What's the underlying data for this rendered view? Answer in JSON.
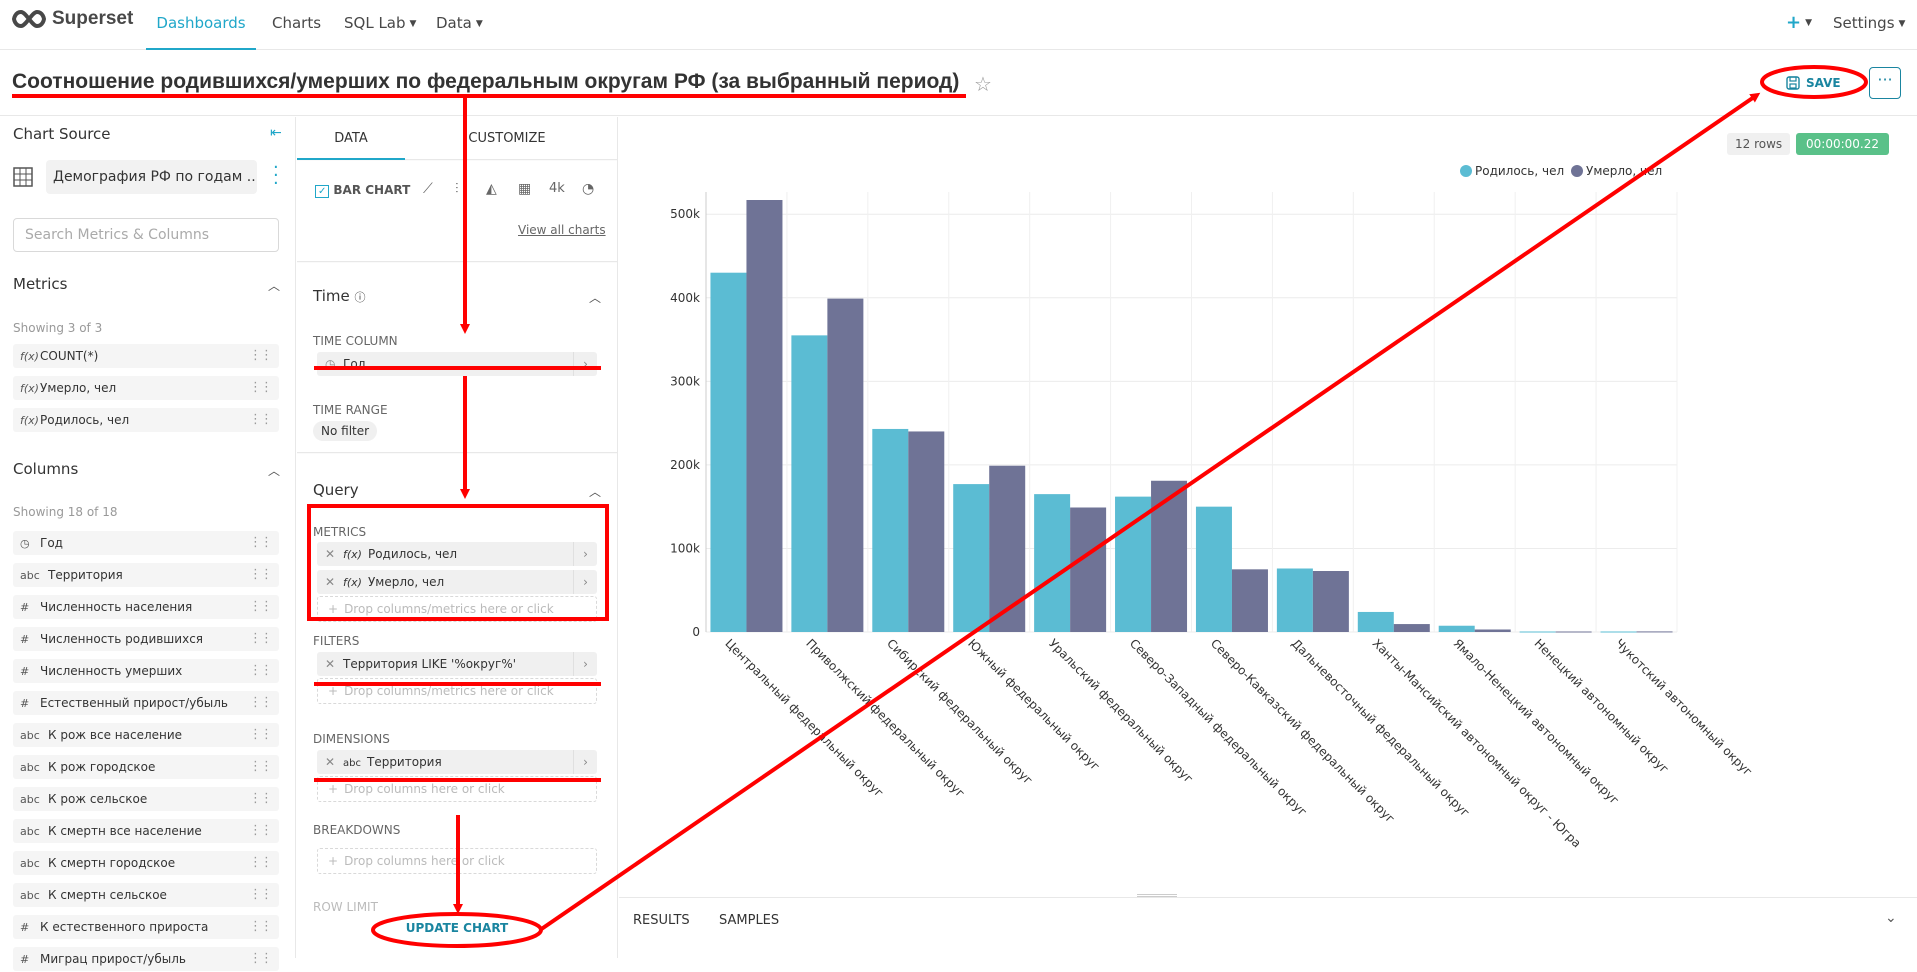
{
  "nav": {
    "logo_text": "Superset",
    "items": [
      "Dashboards",
      "Charts",
      "SQL Lab",
      "Data"
    ],
    "plus": "+",
    "settings": "Settings"
  },
  "header": {
    "title": "Соотношение родившихся/умерших по федеральным округам РФ (за выбранный период)",
    "save_label": "SAVE",
    "more_label": "···"
  },
  "left": {
    "chart_source_label": "Chart Source",
    "dataset": "Демография РФ по годам ...",
    "search_placeholder": "Search Metrics & Columns",
    "metrics_title": "Metrics",
    "metrics_showing": "Showing 3 of 3",
    "metrics": [
      "COUNT(*)",
      "Умерло, чел",
      "Родилось, чел"
    ],
    "columns_title": "Columns",
    "columns_showing": "Showing 18 of 18",
    "columns": [
      {
        "type": "time",
        "name": "Год"
      },
      {
        "type": "abc",
        "name": "Территория"
      },
      {
        "type": "#",
        "name": "Численность населения"
      },
      {
        "type": "#",
        "name": "Численность родившихся"
      },
      {
        "type": "#",
        "name": "Численность умерших"
      },
      {
        "type": "#",
        "name": "Естественный прирост/убыль"
      },
      {
        "type": "abc",
        "name": "К рож все население"
      },
      {
        "type": "abc",
        "name": "К рож городское"
      },
      {
        "type": "abc",
        "name": "К рож сельское"
      },
      {
        "type": "abc",
        "name": "К смертн все население"
      },
      {
        "type": "abc",
        "name": "К смертн городское"
      },
      {
        "type": "abc",
        "name": "К смертн сельское"
      },
      {
        "type": "#",
        "name": "К естественного прироста"
      },
      {
        "type": "#",
        "name": "Миграц прирост/убыль"
      }
    ]
  },
  "mid": {
    "tab_data": "DATA",
    "tab_customize": "CUSTOMIZE",
    "chart_type_active": "BAR CHART",
    "view_all": "View all charts",
    "time_title": "Time",
    "time_column_label": "TIME COLUMN",
    "time_column_value": "Год",
    "time_range_label": "TIME RANGE",
    "time_range_value": "No filter",
    "query_title": "Query",
    "metrics_label": "METRICS",
    "metrics": [
      "Родилось, чел",
      "Умерло, чел"
    ],
    "drop_metrics": "Drop columns/metrics here or click",
    "filters_label": "FILTERS",
    "filter_value": "Территория LIKE '%округ%'",
    "drop_filters": "Drop columns/metrics here or click",
    "dimensions_label": "DIMENSIONS",
    "dimension_value": "Территория",
    "drop_dimensions": "Drop columns here or click",
    "breakdowns_label": "BREAKDOWNS",
    "drop_breakdowns": "Drop columns here or click",
    "row_limit_label": "ROW LIMIT",
    "update_chart": "UPDATE CHART"
  },
  "chart_area": {
    "rows_badge": "12 rows",
    "time_badge": "00:00:00.22",
    "results_tab": "RESULTS",
    "samples_tab": "SAMPLES"
  },
  "colors": {
    "born": "#5bbcd3",
    "died": "#6f7396",
    "accent": "#20a7c9",
    "annotation": "#ff0000"
  },
  "chart_data": {
    "type": "bar",
    "categories": [
      "Центральный федеральный округ",
      "Приволжский федеральный округ",
      "Сибирский федеральный округ",
      "Южный федеральный округ",
      "Уральский федеральный округ",
      "Северо-Западный федеральный округ",
      "Северо-Кавказский федеральный округ",
      "Дальневосточный федеральный округ",
      "Ханты-Мансийский автономный округ - Югра",
      "Ямало-Ненецкий автономный округ",
      "Ненецкий автономный округ",
      "Чукотский автономный округ"
    ],
    "series": [
      {
        "name": "Родилось, чел",
        "values": [
          430000,
          355000,
          243000,
          177000,
          165000,
          162000,
          150000,
          76000,
          24000,
          7500,
          600,
          600
        ]
      },
      {
        "name": "Умерло, чел",
        "values": [
          517000,
          399000,
          240000,
          199000,
          149000,
          181000,
          75000,
          73000,
          9500,
          3000,
          600,
          700
        ]
      }
    ],
    "y_ticks": [
      "0",
      "100k",
      "200k",
      "300k",
      "400k",
      "500k"
    ],
    "ylim": [
      0,
      517000
    ],
    "legend_position": "top-right",
    "grid": true
  }
}
